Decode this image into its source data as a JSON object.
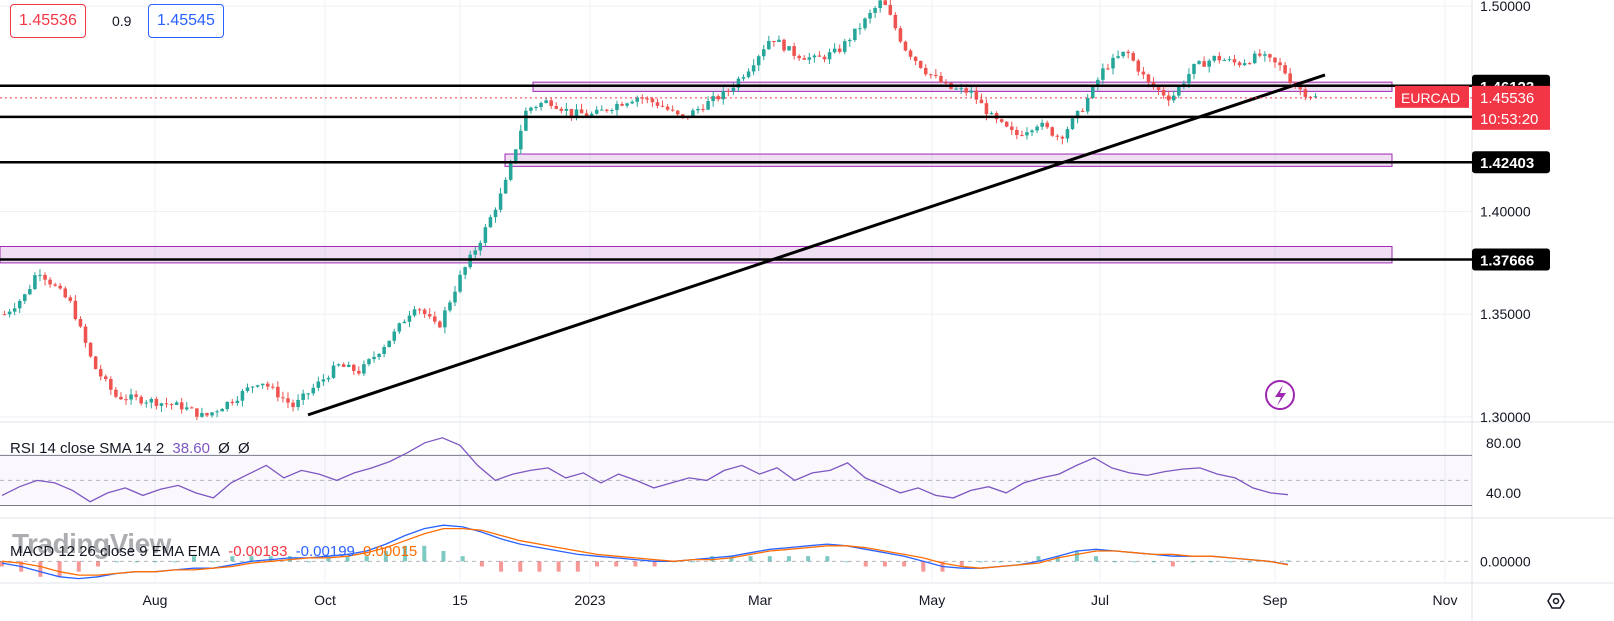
{
  "quotes": {
    "sell": "1.45536",
    "spread": "0.9",
    "buy": "1.45545"
  },
  "colors": {
    "up": "#26a69a",
    "down": "#ef5350",
    "zone": "#9c27b0",
    "rsi": "#7e57c2",
    "macd": "#2962ff",
    "signal": "#ff6d00",
    "label": "#f23645"
  },
  "chart_data": [
    {
      "type": "candlestick",
      "symbol": "EURCAD",
      "last_price": "1.45536",
      "countdown": "10:53:20",
      "y_ticks": [
        "1.50000",
        "1.40000",
        "1.35000",
        "1.30000"
      ],
      "y_range": [
        1.2985,
        1.503
      ],
      "x_ticks": [
        "Aug",
        "Oct",
        "15",
        "2023",
        "Mar",
        "May",
        "Jul",
        "Sep",
        "Nov"
      ],
      "levels": [
        "1.46123",
        "1.44608",
        "1.42403",
        "1.37666"
      ],
      "level_values": [
        1.46123,
        1.44608,
        1.42403,
        1.37666
      ],
      "zones": [
        [
          1.4585,
          1.463
        ],
        [
          1.422,
          1.428
        ],
        [
          1.375,
          1.383
        ]
      ],
      "trendline": {
        "from": [
          "late Sep",
          1.301
        ],
        "to": [
          "mid Sep 2023",
          1.4665
        ]
      },
      "path_points": [
        [
          0,
          1.35
        ],
        [
          0.02,
          1.36
        ],
        [
          0.03,
          1.372
        ],
        [
          0.06,
          1.355
        ],
        [
          0.08,
          1.325
        ],
        [
          0.1,
          1.31
        ],
        [
          0.13,
          1.308
        ],
        [
          0.16,
          1.305
        ],
        [
          0.18,
          1.3
        ],
        [
          0.21,
          1.31
        ],
        [
          0.23,
          1.318
        ],
        [
          0.26,
          1.305
        ],
        [
          0.3,
          1.325
        ],
        [
          0.32,
          1.322
        ],
        [
          0.35,
          1.34
        ],
        [
          0.37,
          1.355
        ],
        [
          0.39,
          1.343
        ],
        [
          0.41,
          1.368
        ],
        [
          0.43,
          1.388
        ],
        [
          0.45,
          1.412
        ],
        [
          0.47,
          1.45
        ],
        [
          0.49,
          1.454
        ],
        [
          0.51,
          1.448
        ],
        [
          0.53,
          1.447
        ],
        [
          0.55,
          1.452
        ],
        [
          0.57,
          1.456
        ],
        [
          0.59,
          1.452
        ],
        [
          0.61,
          1.445
        ],
        [
          0.63,
          1.452
        ],
        [
          0.65,
          1.458
        ],
        [
          0.67,
          1.47
        ],
        [
          0.69,
          1.485
        ],
        [
          0.71,
          1.477
        ],
        [
          0.73,
          1.474
        ],
        [
          0.75,
          1.478
        ],
        [
          0.77,
          1.49
        ],
        [
          0.79,
          1.503
        ],
        [
          0.81,
          1.48
        ],
        [
          0.83,
          1.468
        ],
        [
          0.85,
          1.46
        ],
        [
          0.87,
          1.458
        ],
        [
          0.89,
          1.445
        ],
        [
          0.91,
          1.437
        ],
        [
          0.93,
          1.443
        ],
        [
          0.95,
          1.436
        ],
        [
          0.97,
          1.45
        ],
        [
          0.99,
          1.47
        ],
        [
          1.01,
          1.478
        ],
        [
          1.03,
          1.462
        ],
        [
          1.05,
          1.455
        ],
        [
          1.07,
          1.47
        ],
        [
          1.09,
          1.475
        ],
        [
          1.11,
          1.472
        ],
        [
          1.13,
          1.476
        ],
        [
          1.15,
          1.47
        ],
        [
          1.16,
          1.462
        ],
        [
          1.17,
          1.458
        ],
        [
          1.18,
          1.4555
        ]
      ]
    },
    {
      "type": "line",
      "title": "RSI 14 close SMA 14 2",
      "value": "38.60",
      "extra": [
        "Ø",
        "Ø"
      ],
      "y_ticks": [
        "80.00",
        "40.00"
      ],
      "bands": [
        70,
        30
      ],
      "y_range": [
        20,
        95
      ],
      "values": [
        38,
        45,
        50,
        48,
        42,
        33,
        40,
        44,
        38,
        43,
        46,
        40,
        36,
        48,
        55,
        62,
        52,
        58,
        55,
        50,
        56,
        60,
        65,
        72,
        80,
        84,
        78,
        62,
        50,
        55,
        58,
        60,
        52,
        56,
        48,
        55,
        50,
        44,
        48,
        52,
        50,
        58,
        62,
        55,
        60,
        50,
        56,
        58,
        64,
        52,
        46,
        40,
        44,
        38,
        36,
        42,
        45,
        40,
        48,
        52,
        55,
        62,
        68,
        60,
        56,
        54,
        57,
        59,
        60,
        55,
        52,
        44,
        40,
        38.6
      ]
    },
    {
      "type": "line",
      "title": "MACD 12 26 close 9 EMA EMA",
      "values_display": [
        "-0.00183",
        "-0.00199",
        "0.00015"
      ],
      "y_ticks": [
        "0.00000"
      ],
      "y_range": [
        -0.012,
        0.024
      ],
      "macd": [
        -0.001,
        -0.003,
        -0.006,
        -0.009,
        -0.01,
        -0.009,
        -0.007,
        -0.006,
        -0.006,
        -0.005,
        -0.004,
        -0.004,
        -0.002,
        0.0,
        0.001,
        0.002,
        0.002,
        0.003,
        0.004,
        0.006,
        0.01,
        0.015,
        0.019,
        0.021,
        0.02,
        0.017,
        0.013,
        0.01,
        0.008,
        0.006,
        0.004,
        0.003,
        0.002,
        0.001,
        0.0,
        0.0,
        0.001,
        0.002,
        0.003,
        0.005,
        0.007,
        0.008,
        0.009,
        0.01,
        0.009,
        0.007,
        0.005,
        0.003,
        0.0,
        -0.003,
        -0.004,
        -0.004,
        -0.003,
        -0.002,
        0.0,
        0.003,
        0.006,
        0.007,
        0.006,
        0.005,
        0.004,
        0.003,
        0.003,
        0.003,
        0.002,
        0.001,
        0.0,
        -0.0018
      ],
      "signal": [
        0.0,
        -0.001,
        -0.003,
        -0.006,
        -0.008,
        -0.008,
        -0.007,
        -0.006,
        -0.006,
        -0.005,
        -0.005,
        -0.004,
        -0.003,
        -0.001,
        0.0,
        0.001,
        0.002,
        0.002,
        0.003,
        0.005,
        0.008,
        0.012,
        0.016,
        0.019,
        0.019,
        0.018,
        0.015,
        0.012,
        0.01,
        0.008,
        0.006,
        0.004,
        0.003,
        0.002,
        0.001,
        0.0,
        0.001,
        0.001,
        0.002,
        0.004,
        0.006,
        0.007,
        0.008,
        0.009,
        0.009,
        0.008,
        0.006,
        0.004,
        0.002,
        -0.001,
        -0.003,
        -0.004,
        -0.003,
        -0.002,
        -0.001,
        0.002,
        0.004,
        0.006,
        0.006,
        0.005,
        0.004,
        0.004,
        0.003,
        0.003,
        0.002,
        0.001,
        0.0,
        -0.002
      ]
    }
  ],
  "watermark": "TradingView"
}
